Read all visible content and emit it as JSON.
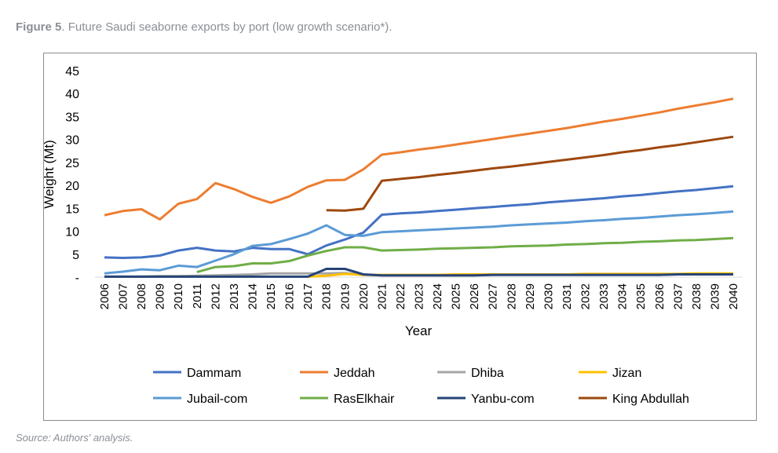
{
  "caption": {
    "label": "Figure 5",
    "text": ". Future Saudi seaborne exports by port (low growth scenario*)."
  },
  "source": "Source: Authors' analysis.",
  "chart_data": {
    "type": "line",
    "title": "",
    "xlabel": "Year",
    "ylabel": "Weight (Mt)",
    "ylim": [
      0,
      45
    ],
    "yticks": [
      0,
      5,
      10,
      15,
      20,
      25,
      30,
      35,
      40,
      45
    ],
    "ytick_labels": [
      "-",
      "5",
      "10",
      "15",
      "20",
      "25",
      "30",
      "35",
      "40",
      "45"
    ],
    "x": [
      2006,
      2007,
      2008,
      2009,
      2010,
      2011,
      2012,
      2013,
      2014,
      2015,
      2016,
      2017,
      2018,
      2019,
      2020,
      2021,
      2022,
      2023,
      2024,
      2025,
      2026,
      2027,
      2028,
      2029,
      2030,
      2031,
      2032,
      2033,
      2034,
      2035,
      2036,
      2037,
      2038,
      2039,
      2040
    ],
    "grid": false,
    "legend_position": "bottom",
    "series": [
      {
        "name": "Dammam",
        "color": "#4472C4",
        "values": [
          4.3,
          4.2,
          4.3,
          4.7,
          5.8,
          6.4,
          5.8,
          5.6,
          6.4,
          6.1,
          6.1,
          5.0,
          6.9,
          8.2,
          9.7,
          13.6,
          13.9,
          14.1,
          14.4,
          14.7,
          15.0,
          15.3,
          15.6,
          15.9,
          16.3,
          16.6,
          16.9,
          17.2,
          17.6,
          17.9,
          18.3,
          18.7,
          19.0,
          19.4,
          19.8
        ]
      },
      {
        "name": "Jeddah",
        "color": "#ED7D31",
        "values": [
          13.5,
          14.4,
          14.8,
          12.6,
          16.0,
          17.0,
          20.5,
          19.2,
          17.5,
          16.2,
          17.6,
          19.7,
          21.1,
          21.2,
          23.5,
          26.7,
          27.2,
          27.8,
          28.3,
          28.9,
          29.5,
          30.1,
          30.7,
          31.3,
          31.9,
          32.5,
          33.2,
          33.9,
          34.5,
          35.2,
          35.9,
          36.7,
          37.4,
          38.1,
          38.9
        ]
      },
      {
        "name": "Dhiba",
        "color": "#A5A5A5",
        "values": [
          0.1,
          0.1,
          0.1,
          0.2,
          0.2,
          0.3,
          0.4,
          0.5,
          0.6,
          0.8,
          0.8,
          0.8,
          0.8,
          0.9,
          0.5,
          0.4,
          0.4,
          0.4,
          0.4,
          0.4,
          0.4,
          0.5,
          0.5,
          0.5,
          0.5,
          0.5,
          0.5,
          0.5,
          0.5,
          0.5,
          0.5,
          0.6,
          0.6,
          0.6,
          0.6
        ]
      },
      {
        "name": "Jizan",
        "color": "#FFC000",
        "values": [
          null,
          null,
          null,
          null,
          null,
          null,
          null,
          null,
          null,
          null,
          null,
          0.1,
          0.3,
          0.7,
          0.5,
          0.5,
          0.5,
          0.5,
          0.5,
          0.6,
          0.6,
          0.6,
          0.6,
          0.6,
          0.6,
          0.6,
          0.7,
          0.7,
          0.7,
          0.7,
          0.7,
          0.7,
          0.8,
          0.8,
          0.8
        ]
      },
      {
        "name": "Jubail-com",
        "color": "#5B9BD5",
        "values": [
          0.8,
          1.2,
          1.7,
          1.5,
          2.5,
          2.2,
          3.6,
          5.0,
          6.8,
          7.2,
          8.3,
          9.5,
          11.3,
          9.2,
          9.0,
          9.8,
          10.0,
          10.2,
          10.4,
          10.6,
          10.8,
          11.0,
          11.3,
          11.5,
          11.7,
          11.9,
          12.2,
          12.4,
          12.7,
          12.9,
          13.2,
          13.5,
          13.7,
          14.0,
          14.3
        ]
      },
      {
        "name": "RasElkhair",
        "color": "#70AD47",
        "values": [
          null,
          null,
          null,
          null,
          null,
          1.1,
          2.2,
          2.4,
          3.0,
          3.0,
          3.5,
          4.7,
          5.7,
          6.5,
          6.5,
          5.8,
          5.9,
          6.0,
          6.2,
          6.3,
          6.4,
          6.5,
          6.7,
          6.8,
          6.9,
          7.1,
          7.2,
          7.4,
          7.5,
          7.7,
          7.8,
          8.0,
          8.1,
          8.3,
          8.5
        ]
      },
      {
        "name": "Yanbu-com",
        "color": "#264478",
        "values": [
          0.1,
          0.1,
          0.1,
          0.1,
          0.1,
          0.1,
          0.1,
          0.1,
          0.1,
          0.1,
          0.1,
          0.1,
          1.8,
          1.8,
          0.6,
          0.4,
          0.4,
          0.4,
          0.4,
          0.4,
          0.4,
          0.5,
          0.5,
          0.5,
          0.5,
          0.5,
          0.5,
          0.5,
          0.5,
          0.5,
          0.5,
          0.6,
          0.6,
          0.6,
          0.6
        ]
      },
      {
        "name": "King Abdullah",
        "color": "#9E480E",
        "values": [
          null,
          null,
          null,
          null,
          null,
          null,
          null,
          null,
          null,
          null,
          null,
          null,
          14.6,
          14.5,
          14.9,
          21.0,
          21.4,
          21.8,
          22.3,
          22.7,
          23.2,
          23.7,
          24.1,
          24.6,
          25.1,
          25.6,
          26.1,
          26.6,
          27.2,
          27.7,
          28.3,
          28.8,
          29.4,
          30.0,
          30.6
        ]
      }
    ]
  }
}
